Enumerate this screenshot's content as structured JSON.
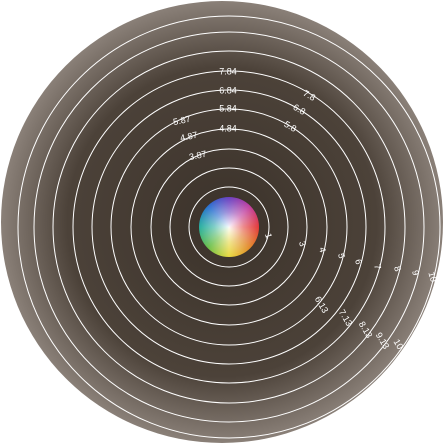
{
  "ring_labels": {
    "right": [
      "1",
      "3",
      "4",
      "5",
      "6",
      "7",
      "8",
      "9",
      "10"
    ],
    "lower_right": [
      "6.13",
      "7.13",
      "8.13",
      "9.13",
      "10.13"
    ],
    "top": [
      "7.84",
      "6.84",
      "5.84",
      "4.84"
    ],
    "upper_left": [
      "5.87",
      "4.87",
      "3.87"
    ],
    "upper_right": [
      "7.8",
      "6.8",
      "5.8"
    ]
  }
}
